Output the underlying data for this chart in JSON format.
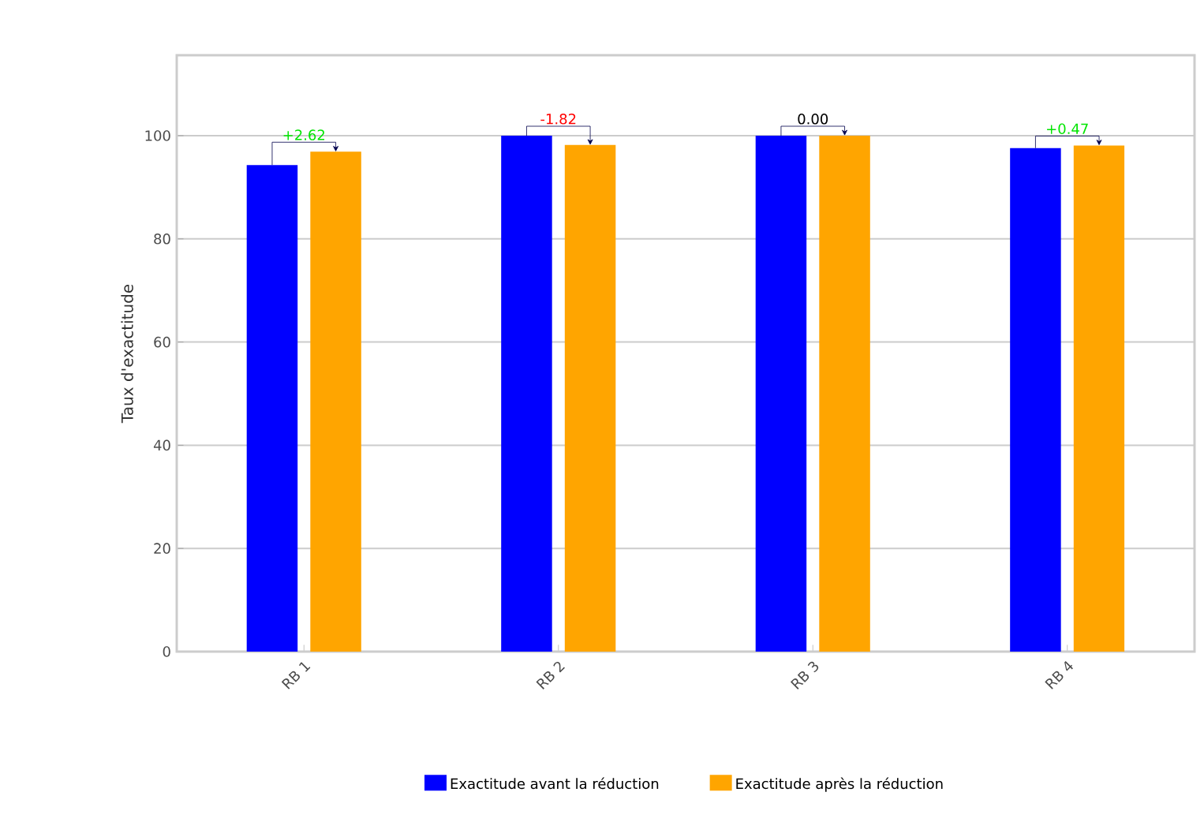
{
  "chart_data": {
    "type": "bar",
    "ylabel": "Taux d'exactitude",
    "categories": [
      "RB 1",
      "RB 2",
      "RB 3",
      "RB 4"
    ],
    "series": [
      {
        "name": "Exactitude avant la réduction",
        "color": "#0000ff",
        "values": [
          94.3,
          100,
          100,
          97.6
        ]
      },
      {
        "name": "Exactitude après la réduction",
        "color": "#ffa500",
        "values": [
          96.9,
          98.2,
          100,
          98.1
        ]
      }
    ],
    "ylim": [
      0,
      115.6
    ],
    "yticks": [
      0,
      20,
      40,
      60,
      80,
      100
    ],
    "grid": "y",
    "legend": "bottom",
    "annotations": [
      {
        "text": "+2.62",
        "x": "RB 1",
        "y": 96.9
      },
      {
        "text": "-1.82",
        "x": "RB 2",
        "y": 100
      },
      {
        "text": "0.00",
        "x": "RB 3",
        "y": 100
      },
      {
        "text": "+0.47",
        "x": "RB 4",
        "y": 98.1
      }
    ]
  }
}
